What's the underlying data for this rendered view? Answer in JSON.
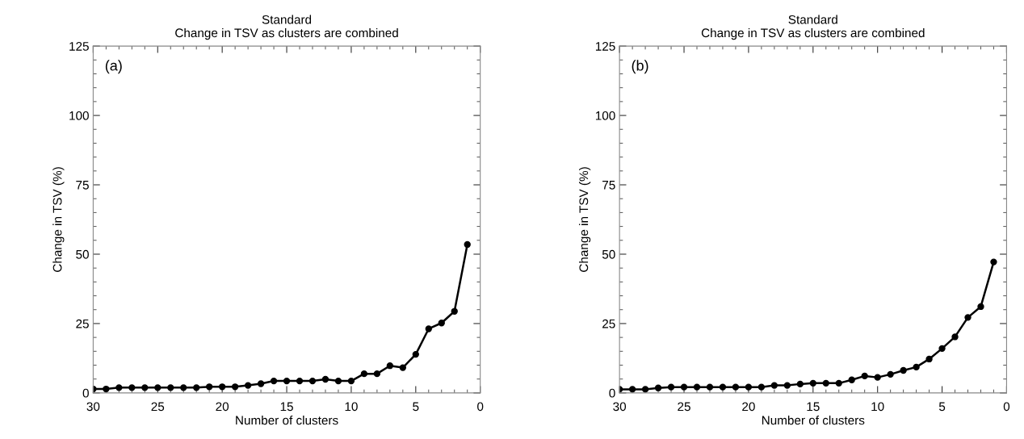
{
  "chart_data": [
    {
      "type": "line",
      "title": "Standard\nChange in TSV as clusters are combined",
      "xlabel": "Number of clusters",
      "ylabel": "Change in TSV (%)",
      "annotations": [
        "(a)"
      ],
      "marker": "circle",
      "line_style": "solid",
      "grid": false,
      "xlim": [
        30,
        0
      ],
      "ylim": [
        0,
        125
      ],
      "xticks": [
        30,
        25,
        20,
        15,
        10,
        5,
        0
      ],
      "yticks": [
        0,
        25,
        50,
        75,
        100,
        125
      ],
      "x": [
        30,
        29,
        28,
        27,
        26,
        25,
        24,
        23,
        22,
        21,
        20,
        19,
        18,
        17,
        16,
        15,
        14,
        13,
        12,
        11,
        10,
        9,
        8,
        7,
        6,
        5,
        4,
        3,
        2,
        1
      ],
      "series": [
        {
          "color": "#000000",
          "values": [
            1.4,
            1.4,
            1.9,
            1.9,
            1.9,
            1.9,
            1.9,
            1.9,
            1.9,
            2.2,
            2.2,
            2.2,
            2.7,
            3.3,
            4.3,
            4.3,
            4.3,
            4.3,
            4.9,
            4.3,
            4.3,
            6.9,
            6.9,
            9.8,
            9.1,
            13.9,
            23.1,
            25.2,
            29.4,
            53.5
          ]
        }
      ]
    },
    {
      "type": "line",
      "title": "Standard\nChange in TSV as clusters are combined",
      "xlabel": "Number of clusters",
      "ylabel": "Change in TSV (%)",
      "annotations": [
        "(b)"
      ],
      "marker": "circle",
      "line_style": "solid",
      "grid": false,
      "xlim": [
        30,
        0
      ],
      "ylim": [
        0,
        125
      ],
      "xticks": [
        30,
        25,
        20,
        15,
        10,
        5,
        0
      ],
      "yticks": [
        0,
        25,
        50,
        75,
        100,
        125
      ],
      "x": [
        30,
        29,
        28,
        27,
        26,
        25,
        24,
        23,
        22,
        21,
        20,
        19,
        18,
        17,
        16,
        15,
        14,
        13,
        12,
        11,
        10,
        9,
        8,
        7,
        6,
        5,
        4,
        3,
        2,
        1
      ],
      "series": [
        {
          "color": "#000000",
          "values": [
            1.3,
            1.3,
            1.3,
            1.8,
            2.1,
            2.1,
            2.1,
            2.1,
            2.1,
            2.1,
            2.1,
            2.1,
            2.7,
            2.7,
            3.2,
            3.5,
            3.5,
            3.5,
            4.7,
            6.1,
            5.6,
            6.7,
            8.1,
            9.3,
            12.2,
            16.0,
            20.2,
            27.2,
            31.1,
            47.2
          ]
        }
      ]
    }
  ]
}
